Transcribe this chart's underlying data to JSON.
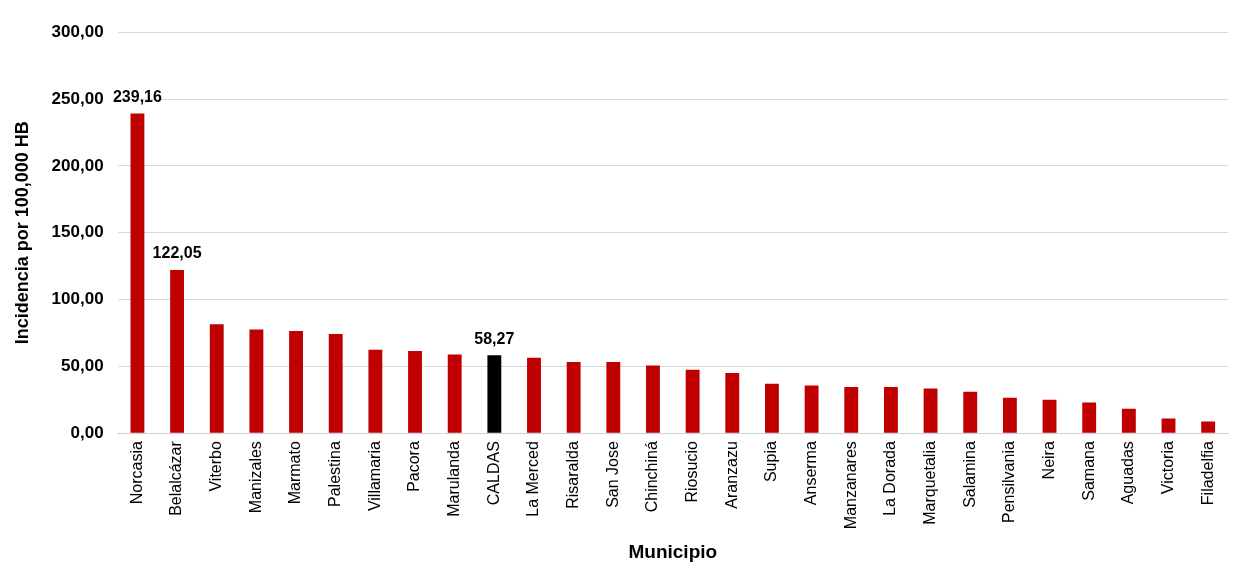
{
  "chart_data": {
    "type": "bar",
    "xlabel": "Municipio",
    "ylabel": "Incidencia por 100,000 HB",
    "categories": [
      "Norcasia",
      "Belalcázar",
      "Viterbo",
      "Manizales",
      "Marmato",
      "Palestina",
      "Villamaria",
      "Pacora",
      "Marulanda",
      "CALDAS",
      "La Merced",
      "Risaralda",
      "San Jose",
      "Chinchiná",
      "Riosucio",
      "Aranzazu",
      "Supia",
      "Anserma",
      "Manzanares",
      "La Dorada",
      "Marquetalia",
      "Salamina",
      "Pensilvania",
      "Neira",
      "Samana",
      "Aguadas",
      "Victoria",
      "Filadelfia"
    ],
    "values": [
      239.16,
      122.05,
      81.4,
      77.5,
      76.5,
      74.2,
      62.4,
      61.4,
      58.8,
      58.27,
      56.5,
      53.3,
      53.2,
      50.7,
      47.5,
      45.1,
      37,
      35.6,
      34.5,
      34.5,
      33.5,
      31,
      26.4,
      25,
      22.9,
      18.3,
      10.9,
      8.8
    ],
    "colors": [
      "#c00000",
      "#c00000",
      "#c00000",
      "#c00000",
      "#c00000",
      "#c00000",
      "#c00000",
      "#c00000",
      "#c00000",
      "#000000",
      "#c00000",
      "#c00000",
      "#c00000",
      "#c00000",
      "#c00000",
      "#c00000",
      "#c00000",
      "#c00000",
      "#c00000",
      "#c00000",
      "#c00000",
      "#c00000",
      "#c00000",
      "#c00000",
      "#c00000",
      "#c00000",
      "#c00000",
      "#c00000"
    ],
    "value_labels": [
      "239,16",
      "122,05",
      null,
      null,
      null,
      null,
      null,
      null,
      null,
      "58,27",
      null,
      null,
      null,
      null,
      null,
      null,
      null,
      null,
      null,
      null,
      null,
      null,
      null,
      null,
      null,
      null,
      null,
      null
    ],
    "ylim": [
      0,
      300
    ],
    "yticks": [
      {
        "value": 0,
        "label": "0,00"
      },
      {
        "value": 50,
        "label": "50,00"
      },
      {
        "value": 100,
        "label": "100,00"
      },
      {
        "value": 150,
        "label": "150,00"
      },
      {
        "value": 200,
        "label": "200,00"
      },
      {
        "value": 250,
        "label": "250,00"
      },
      {
        "value": 300,
        "label": "300,00"
      }
    ],
    "grid": "y",
    "legend": false
  }
}
